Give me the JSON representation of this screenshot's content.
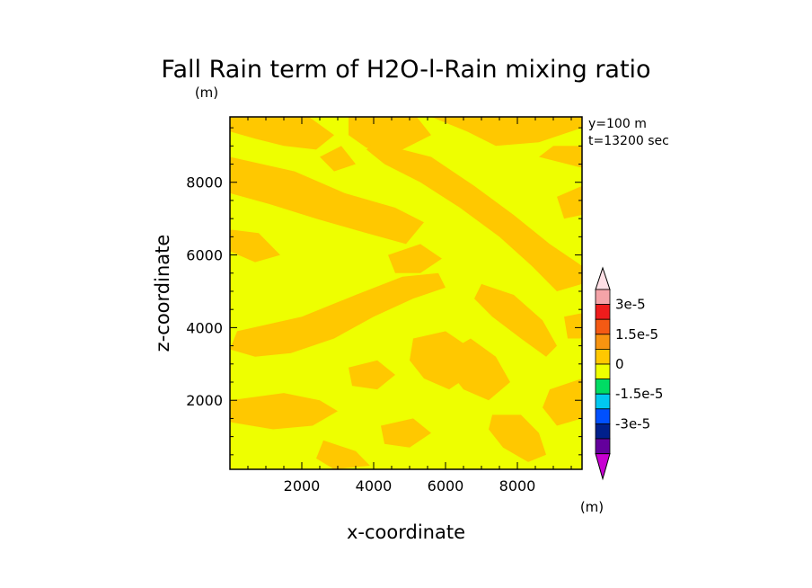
{
  "chart_data": {
    "type": "heatmap",
    "title": "Fall Rain term of H2O-l-Rain mixing ratio",
    "title_unit": "(m)",
    "annotation_lines": [
      "y=100 m",
      "t=13200 sec"
    ],
    "xlabel": "x-coordinate",
    "ylabel": "z-coordinate",
    "xlim": [
      0,
      9800
    ],
    "ylim": [
      100,
      9800
    ],
    "xticks": [
      2000,
      4000,
      6000,
      8000
    ],
    "yticks": [
      2000,
      4000,
      6000,
      8000
    ],
    "xtick_labels": [
      "2000",
      "4000",
      "6000",
      "8000"
    ],
    "ytick_labels": [
      "2000",
      "4000",
      "6000",
      "8000"
    ],
    "colorbar": {
      "unit": "(m)",
      "labels": [
        "3e-5",
        "1.5e-5",
        "0",
        "-1.5e-5",
        "-3e-5"
      ],
      "label_values": [
        3e-05,
        1.5e-05,
        0,
        -1.5e-05,
        -3e-05
      ],
      "levels_top_to_bottom": [
        3.75e-05,
        3e-05,
        2.25e-05,
        1.5e-05,
        7.5e-06,
        0,
        -7.5e-06,
        -1.5e-05,
        -2.25e-05,
        -3e-05,
        -3.75e-05
      ],
      "colors_top_to_bottom": [
        "#ffe0e6",
        "#f4a3a8",
        "#ee1c1c",
        "#f45a14",
        "#f79410",
        "#ffc800",
        "#eeff00",
        "#00dc64",
        "#00c8f0",
        "#0050ff",
        "#00208c",
        "#64009c",
        "#c800d2"
      ]
    },
    "field_colors": {
      "background": "#eeff00",
      "patch": "#ffc800"
    },
    "field_patches": [
      [
        [
          0,
          9800
        ],
        [
          2200,
          9800
        ],
        [
          2900,
          9300
        ],
        [
          2400,
          8900
        ],
        [
          1500,
          9000
        ],
        [
          700,
          9200
        ],
        [
          0,
          9400
        ]
      ],
      [
        [
          3300,
          9800
        ],
        [
          5200,
          9800
        ],
        [
          5600,
          9300
        ],
        [
          4800,
          8900
        ],
        [
          3800,
          8950
        ],
        [
          3300,
          9300
        ]
      ],
      [
        [
          5600,
          9800
        ],
        [
          9800,
          9800
        ],
        [
          9800,
          9500
        ],
        [
          8600,
          9100
        ],
        [
          7400,
          9000
        ],
        [
          6600,
          9400
        ]
      ],
      [
        [
          0,
          8700
        ],
        [
          1800,
          8300
        ],
        [
          3200,
          7700
        ],
        [
          4600,
          7300
        ],
        [
          5400,
          6900
        ],
        [
          4900,
          6300
        ],
        [
          3800,
          6600
        ],
        [
          2400,
          7000
        ],
        [
          1100,
          7400
        ],
        [
          0,
          7700
        ]
      ],
      [
        [
          4000,
          9100
        ],
        [
          5600,
          8700
        ],
        [
          6800,
          7900
        ],
        [
          7900,
          7100
        ],
        [
          8900,
          6300
        ],
        [
          9800,
          5700
        ],
        [
          9800,
          5200
        ],
        [
          9100,
          5000
        ],
        [
          8400,
          5700
        ],
        [
          7500,
          6500
        ],
        [
          6400,
          7300
        ],
        [
          5300,
          8000
        ],
        [
          4300,
          8500
        ],
        [
          3800,
          8900
        ]
      ],
      [
        [
          8600,
          8700
        ],
        [
          9800,
          8400
        ],
        [
          9800,
          9000
        ],
        [
          9000,
          9000
        ]
      ],
      [
        [
          0,
          6700
        ],
        [
          800,
          6600
        ],
        [
          1400,
          6000
        ],
        [
          700,
          5800
        ],
        [
          0,
          6100
        ]
      ],
      [
        [
          200,
          3900
        ],
        [
          2000,
          4300
        ],
        [
          3500,
          4900
        ],
        [
          4800,
          5400
        ],
        [
          5800,
          5500
        ],
        [
          6000,
          5100
        ],
        [
          5100,
          4800
        ],
        [
          4000,
          4300
        ],
        [
          2900,
          3700
        ],
        [
          1700,
          3300
        ],
        [
          700,
          3200
        ],
        [
          0,
          3400
        ]
      ],
      [
        [
          0,
          2000
        ],
        [
          1500,
          2200
        ],
        [
          2500,
          2000
        ],
        [
          3000,
          1700
        ],
        [
          2300,
          1300
        ],
        [
          1200,
          1200
        ],
        [
          0,
          1400
        ]
      ],
      [
        [
          3300,
          2900
        ],
        [
          4100,
          3100
        ],
        [
          4600,
          2700
        ],
        [
          4100,
          2300
        ],
        [
          3400,
          2400
        ]
      ],
      [
        [
          5100,
          3700
        ],
        [
          6000,
          3900
        ],
        [
          6600,
          3500
        ],
        [
          6700,
          2700
        ],
        [
          6100,
          2300
        ],
        [
          5400,
          2600
        ],
        [
          5000,
          3100
        ]
      ],
      [
        [
          7000,
          5200
        ],
        [
          7900,
          4900
        ],
        [
          8700,
          4200
        ],
        [
          9100,
          3500
        ],
        [
          8800,
          3200
        ],
        [
          8100,
          3700
        ],
        [
          7300,
          4300
        ],
        [
          6800,
          4800
        ]
      ],
      [
        [
          6000,
          3300
        ],
        [
          6700,
          3700
        ],
        [
          7400,
          3200
        ],
        [
          7800,
          2500
        ],
        [
          7200,
          2000
        ],
        [
          6500,
          2300
        ],
        [
          6100,
          2800
        ]
      ],
      [
        [
          8900,
          2300
        ],
        [
          9800,
          2600
        ],
        [
          9800,
          1500
        ],
        [
          9100,
          1300
        ],
        [
          8700,
          1800
        ]
      ],
      [
        [
          7300,
          1600
        ],
        [
          8100,
          1600
        ],
        [
          8600,
          1100
        ],
        [
          8800,
          500
        ],
        [
          8300,
          300
        ],
        [
          7600,
          700
        ],
        [
          7200,
          1200
        ]
      ],
      [
        [
          2600,
          900
        ],
        [
          3500,
          600
        ],
        [
          3900,
          200
        ],
        [
          2900,
          100
        ],
        [
          2400,
          400
        ]
      ],
      [
        [
          4200,
          1300
        ],
        [
          5100,
          1500
        ],
        [
          5600,
          1100
        ],
        [
          5000,
          700
        ],
        [
          4300,
          800
        ]
      ],
      [
        [
          4400,
          6000
        ],
        [
          5300,
          6300
        ],
        [
          5900,
          5900
        ],
        [
          5300,
          5500
        ],
        [
          4600,
          5500
        ]
      ],
      [
        [
          9100,
          7600
        ],
        [
          9800,
          7900
        ],
        [
          9800,
          7100
        ],
        [
          9300,
          7000
        ]
      ],
      [
        [
          2500,
          8700
        ],
        [
          3100,
          9000
        ],
        [
          3500,
          8500
        ],
        [
          2900,
          8300
        ]
      ],
      [
        [
          9300,
          4300
        ],
        [
          9800,
          4400
        ],
        [
          9800,
          3700
        ],
        [
          9400,
          3700
        ]
      ]
    ]
  }
}
